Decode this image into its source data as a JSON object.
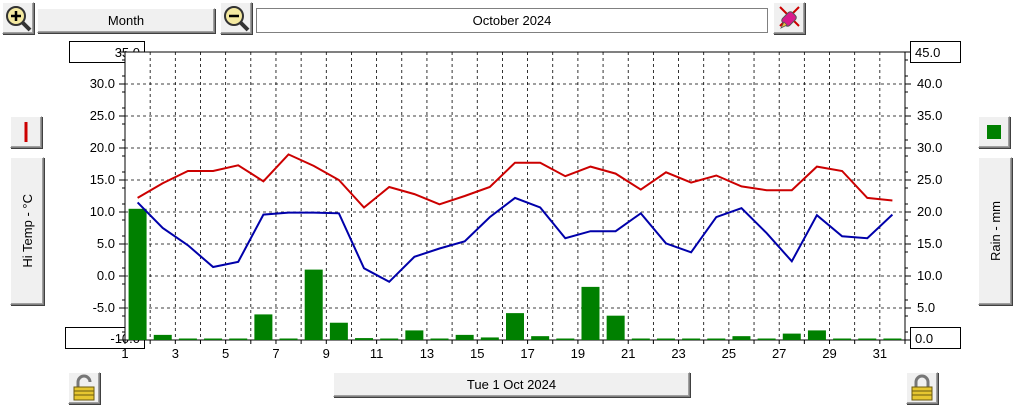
{
  "toolbar": {
    "period_label": "Month",
    "date_label": "October 2024"
  },
  "axes": {
    "left_title": "Hi Temp - °C",
    "right_title": "Rain - mm",
    "left_max": "35.0",
    "left_min": "-10.0",
    "right_max": "45.0",
    "right_min": "0.0"
  },
  "footer": {
    "selected_date": "Tue 1 Oct 2024"
  },
  "colors": {
    "hi_temp": "#cc0000",
    "lo_temp": "#0000aa",
    "rain": "#008000"
  },
  "chart_data": {
    "type": "line",
    "x": [
      1,
      2,
      3,
      4,
      5,
      6,
      7,
      8,
      9,
      10,
      11,
      12,
      13,
      14,
      15,
      16,
      17,
      18,
      19,
      20,
      21,
      22,
      23,
      24,
      25,
      26,
      27,
      28,
      29,
      30,
      31
    ],
    "xlim": [
      1,
      32
    ],
    "x_ticks": [
      "1",
      "3",
      "5",
      "7",
      "9",
      "11",
      "13",
      "15",
      "17",
      "19",
      "21",
      "23",
      "25",
      "27",
      "29",
      "31"
    ],
    "left_axis": {
      "label": "Hi Temp - °C",
      "ylim": [
        -10,
        35
      ],
      "ticks": [
        "35.0",
        "30.0",
        "25.0",
        "20.0",
        "15.0",
        "10.0",
        "5.0",
        "0.0",
        "-5.0",
        "-10.0"
      ]
    },
    "right_axis": {
      "label": "Rain - mm",
      "ylim": [
        0,
        45
      ],
      "ticks": [
        "45.0",
        "40.0",
        "35.0",
        "30.0",
        "25.0",
        "20.0",
        "15.0",
        "10.0",
        "5.0",
        "0.0"
      ]
    },
    "grid": true,
    "series": [
      {
        "type": "line",
        "axis": "left",
        "color": "#cc0000",
        "values": [
          12.2,
          14.5,
          16.4,
          16.4,
          17.3,
          14.8,
          19.0,
          17.2,
          15.0,
          10.7,
          13.9,
          12.8,
          11.2,
          12.5,
          13.9,
          17.7,
          17.7,
          15.6,
          17.1,
          16.0,
          13.5,
          16.2,
          14.6,
          15.7,
          14.0,
          13.4,
          13.4,
          17.1,
          16.4,
          12.2,
          11.8
        ]
      },
      {
        "type": "line",
        "axis": "left",
        "color": "#0000aa",
        "values": [
          11.5,
          7.5,
          4.8,
          1.4,
          2.2,
          9.6,
          9.9,
          9.9,
          9.8,
          1.2,
          -0.9,
          3.0,
          4.3,
          5.4,
          9.2,
          12.2,
          10.7,
          5.9,
          7.0,
          7.0,
          9.8,
          5.1,
          3.7,
          9.2,
          10.6,
          6.7,
          2.3,
          9.5,
          6.2,
          5.9,
          9.6
        ]
      },
      {
        "type": "bar",
        "axis": "right",
        "color": "#008000",
        "values": [
          20.5,
          0.8,
          0.0,
          0.0,
          0.0,
          4.0,
          0.0,
          11.0,
          2.7,
          0.3,
          0.0,
          1.5,
          0.0,
          0.8,
          0.4,
          4.2,
          0.6,
          0.0,
          8.3,
          3.8,
          0.0,
          0.0,
          0.0,
          0.0,
          0.6,
          0.0,
          1.0,
          1.5,
          0.0,
          0.0,
          0.0
        ]
      }
    ]
  }
}
